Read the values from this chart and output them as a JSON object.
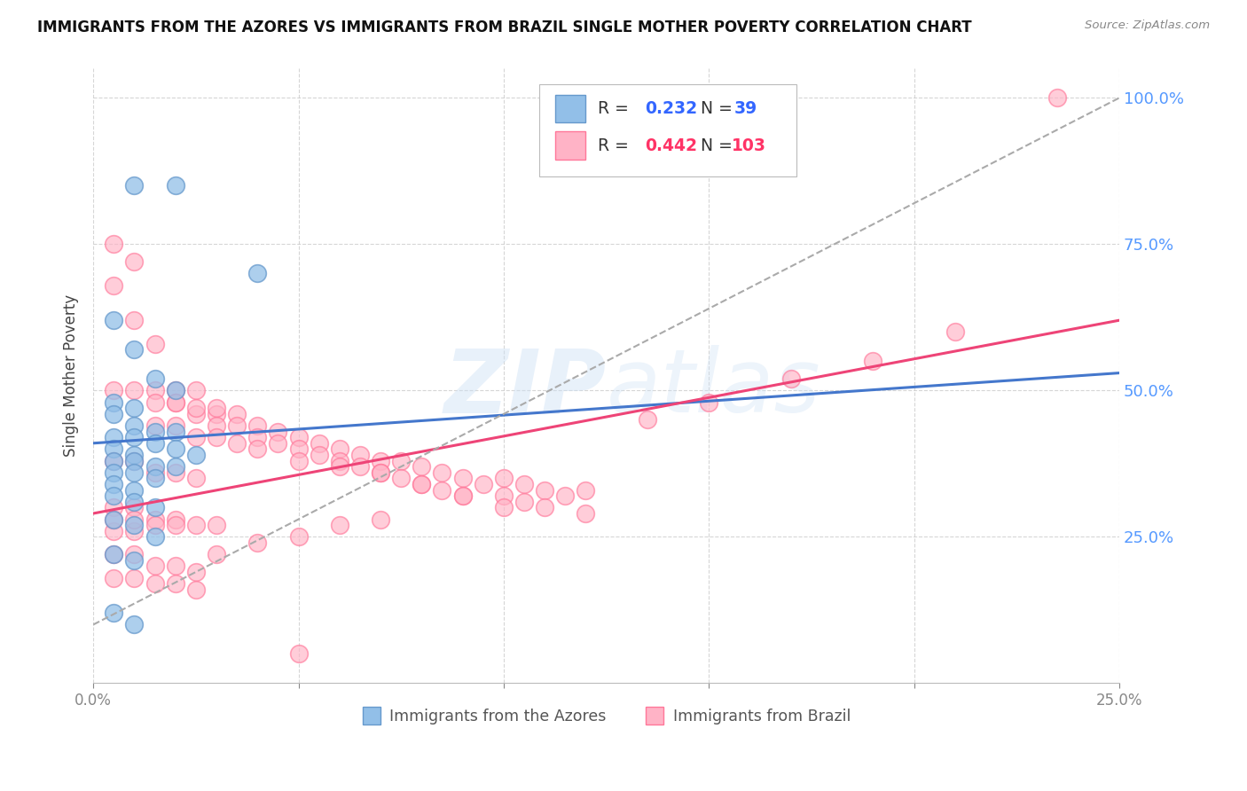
{
  "title": "IMMIGRANTS FROM THE AZORES VS IMMIGRANTS FROM BRAZIL SINGLE MOTHER POVERTY CORRELATION CHART",
  "source": "Source: ZipAtlas.com",
  "ylabel": "Single Mother Poverty",
  "watermark": "ZIPatlas",
  "legend_azores_label": "Immigrants from the Azores",
  "legend_brazil_label": "Immigrants from Brazil",
  "legend_azores_R": "0.232",
  "legend_azores_N": "39",
  "legend_brazil_R": "0.442",
  "legend_brazil_N": "103",
  "azores_color": "#92bfe8",
  "azores_edge_color": "#6699cc",
  "brazil_color": "#ffb3c6",
  "brazil_edge_color": "#ff7799",
  "trend_azores_color": "#4477cc",
  "trend_brazil_color": "#ee4477",
  "trend_gray_color": "#aaaaaa",
  "background_color": "#ffffff",
  "grid_color": "#cccccc",
  "right_tick_color": "#5599ff",
  "xlim": [
    0.0,
    0.25
  ],
  "ylim": [
    0.0,
    1.05
  ],
  "x_ticks": [
    0.0,
    0.05,
    0.1,
    0.15,
    0.2,
    0.25
  ],
  "x_tick_labels_show": [
    "0.0%",
    "",
    "",
    "",
    "",
    "25.0%"
  ],
  "y_ticks_right": [
    0.25,
    0.5,
    0.75,
    1.0
  ],
  "y_tick_labels_right": [
    "25.0%",
    "50.0%",
    "75.0%",
    "100.0%"
  ],
  "azores_x": [
    0.01,
    0.02,
    0.04,
    0.005,
    0.01,
    0.015,
    0.02,
    0.005,
    0.01,
    0.005,
    0.01,
    0.015,
    0.02,
    0.005,
    0.01,
    0.015,
    0.02,
    0.005,
    0.01,
    0.025,
    0.005,
    0.01,
    0.015,
    0.02,
    0.005,
    0.01,
    0.015,
    0.005,
    0.01,
    0.005,
    0.01,
    0.015,
    0.005,
    0.01,
    0.015,
    0.005,
    0.01,
    0.005,
    0.01
  ],
  "azores_y": [
    0.85,
    0.85,
    0.7,
    0.62,
    0.57,
    0.52,
    0.5,
    0.48,
    0.47,
    0.46,
    0.44,
    0.43,
    0.43,
    0.42,
    0.42,
    0.41,
    0.4,
    0.4,
    0.39,
    0.39,
    0.38,
    0.38,
    0.37,
    0.37,
    0.36,
    0.36,
    0.35,
    0.34,
    0.33,
    0.32,
    0.31,
    0.3,
    0.28,
    0.27,
    0.25,
    0.22,
    0.21,
    0.12,
    0.1
  ],
  "brazil_x": [
    0.235,
    0.005,
    0.005,
    0.01,
    0.01,
    0.015,
    0.015,
    0.02,
    0.02,
    0.025,
    0.025,
    0.03,
    0.03,
    0.035,
    0.035,
    0.04,
    0.04,
    0.045,
    0.045,
    0.05,
    0.05,
    0.055,
    0.055,
    0.06,
    0.06,
    0.065,
    0.065,
    0.07,
    0.07,
    0.075,
    0.075,
    0.08,
    0.08,
    0.085,
    0.085,
    0.09,
    0.09,
    0.095,
    0.1,
    0.1,
    0.105,
    0.105,
    0.11,
    0.11,
    0.115,
    0.12,
    0.12,
    0.005,
    0.01,
    0.015,
    0.02,
    0.025,
    0.03,
    0.005,
    0.01,
    0.015,
    0.02,
    0.025,
    0.005,
    0.01,
    0.015,
    0.02,
    0.025,
    0.03,
    0.005,
    0.01,
    0.015,
    0.02,
    0.025,
    0.03,
    0.035,
    0.04,
    0.05,
    0.06,
    0.07,
    0.08,
    0.09,
    0.1,
    0.005,
    0.01,
    0.015,
    0.02,
    0.025,
    0.005,
    0.01,
    0.015,
    0.02,
    0.135,
    0.15,
    0.17,
    0.19,
    0.21,
    0.005,
    0.01,
    0.015,
    0.02,
    0.025,
    0.03,
    0.04,
    0.05,
    0.06,
    0.07,
    0.05
  ],
  "brazil_y": [
    1.0,
    0.75,
    0.68,
    0.72,
    0.62,
    0.58,
    0.5,
    0.5,
    0.48,
    0.5,
    0.46,
    0.46,
    0.44,
    0.46,
    0.44,
    0.44,
    0.42,
    0.43,
    0.41,
    0.42,
    0.4,
    0.41,
    0.39,
    0.4,
    0.38,
    0.39,
    0.37,
    0.38,
    0.36,
    0.38,
    0.35,
    0.37,
    0.34,
    0.36,
    0.33,
    0.35,
    0.32,
    0.34,
    0.35,
    0.32,
    0.34,
    0.31,
    0.33,
    0.3,
    0.32,
    0.33,
    0.29,
    0.5,
    0.5,
    0.48,
    0.48,
    0.47,
    0.47,
    0.38,
    0.38,
    0.36,
    0.36,
    0.35,
    0.3,
    0.3,
    0.28,
    0.28,
    0.27,
    0.27,
    0.26,
    0.26,
    0.44,
    0.44,
    0.42,
    0.42,
    0.41,
    0.4,
    0.38,
    0.37,
    0.36,
    0.34,
    0.32,
    0.3,
    0.22,
    0.22,
    0.2,
    0.2,
    0.19,
    0.28,
    0.28,
    0.27,
    0.27,
    0.45,
    0.48,
    0.52,
    0.55,
    0.6,
    0.18,
    0.18,
    0.17,
    0.17,
    0.16,
    0.22,
    0.24,
    0.25,
    0.27,
    0.28,
    0.05
  ],
  "azores_trend": [
    0.0,
    0.25,
    0.41,
    0.53
  ],
  "brazil_trend": [
    0.0,
    0.25,
    0.29,
    0.62
  ],
  "gray_trend": [
    0.0,
    0.25,
    0.1,
    1.0
  ]
}
